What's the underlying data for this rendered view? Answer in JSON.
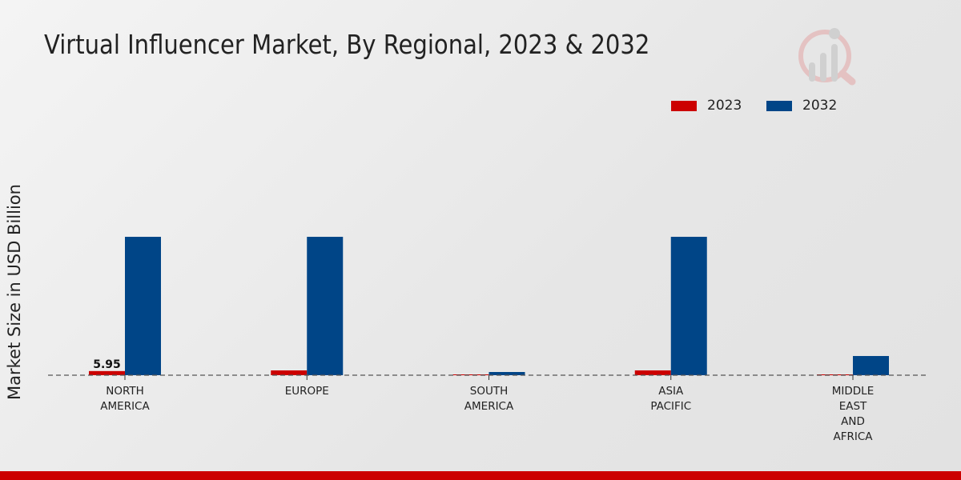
{
  "chart_data": {
    "type": "bar",
    "title": "Virtual Influencer Market, By Regional, 2023 & 2032",
    "xlabel": "",
    "ylabel": "Market Size in USD Billion",
    "categories": [
      [
        "NORTH",
        "AMERICA"
      ],
      [
        "EUROPE"
      ],
      [
        "SOUTH",
        "AMERICA"
      ],
      [
        "ASIA",
        "PACIFIC"
      ],
      [
        "MIDDLE",
        "EAST",
        "AND",
        "AFRICA"
      ]
    ],
    "series": [
      {
        "name": "2023",
        "color": "#cc0000",
        "values": [
          5.95,
          6.9,
          0.4,
          6.9,
          0.3
        ]
      },
      {
        "name": "2032",
        "color": "#004587",
        "values": [
          199,
          199,
          4.6,
          199,
          27.6
        ]
      }
    ],
    "data_labels": [
      {
        "series": 0,
        "index": 0,
        "text": "5.95"
      }
    ],
    "ylim": [
      0,
      390
    ],
    "grid": false,
    "legend_position": "top-right"
  },
  "colors": {
    "accent": "#cc0000",
    "primary": "#004587"
  }
}
